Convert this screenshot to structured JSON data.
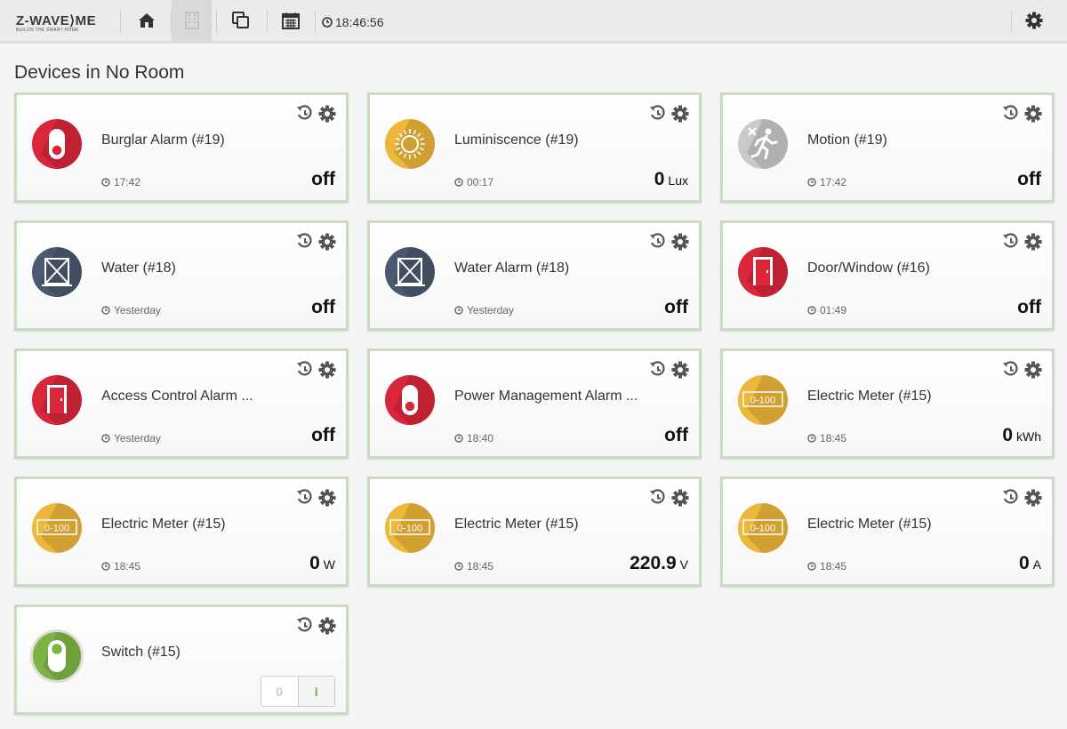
{
  "header": {
    "logo": "Z-WAVE⟩ME",
    "logo_tagline": "BUILDS THE SMART HOME",
    "time": "18:46:56"
  },
  "page": {
    "title": "Devices in No Room"
  },
  "devices": [
    {
      "name": "Burglar Alarm (#19)",
      "time": "17:42",
      "value": "off"
    },
    {
      "name": "Luminiscence (#19)",
      "time": "00:17",
      "value": "0",
      "unit": "Lux"
    },
    {
      "name": "Motion (#19)",
      "time": "17:42",
      "value": "off"
    },
    {
      "name": "Water (#18)",
      "time": "Yesterday",
      "value": "off"
    },
    {
      "name": "Water Alarm (#18)",
      "time": "Yesterday",
      "value": "off"
    },
    {
      "name": "Door/Window (#16)",
      "time": "01:49",
      "value": "off"
    },
    {
      "name": "Access Control Alarm ...",
      "time": "Yesterday",
      "value": "off"
    },
    {
      "name": "Power Management Alarm ...",
      "time": "18:40",
      "value": "off"
    },
    {
      "name": "Electric Meter (#15)",
      "badge": "0-100",
      "time": "18:45",
      "value": "0",
      "unit": "kWh"
    },
    {
      "name": "Electric Meter (#15)",
      "badge": "0-100",
      "time": "18:45",
      "value": "0",
      "unit": "W"
    },
    {
      "name": "Electric Meter (#15)",
      "badge": "0-100",
      "time": "18:45",
      "value": "220.9",
      "unit": "V"
    },
    {
      "name": "Electric Meter (#15)",
      "badge": "0-100",
      "time": "18:45",
      "value": "0",
      "unit": "A"
    },
    {
      "name": "Switch (#15)",
      "buttons": [
        "0",
        "I"
      ]
    }
  ]
}
